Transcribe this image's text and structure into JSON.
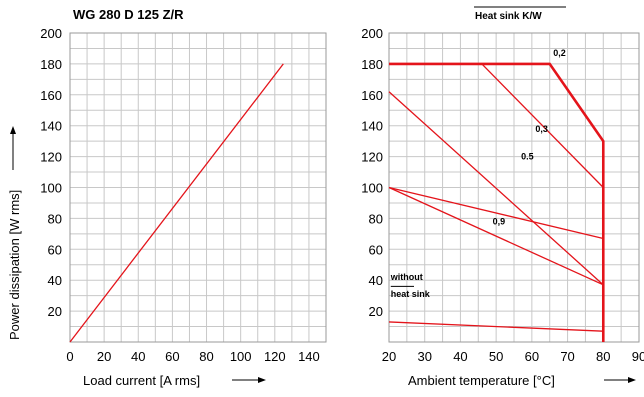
{
  "chart_data": [
    {
      "type": "line",
      "title": "WG 280 D 125 Z/R",
      "xlabel": "Load current [A rms]",
      "ylabel": "Power dissipation [W rms]",
      "xlim": [
        0,
        150
      ],
      "ylim": [
        0,
        200
      ],
      "xticks": [
        "0",
        "20",
        "40",
        "60",
        "80",
        "100",
        "120",
        "140"
      ],
      "yticks": [
        "20",
        "40",
        "60",
        "80",
        "100",
        "120",
        "140",
        "160",
        "180",
        "200"
      ],
      "grid": true,
      "color": "#e4141b",
      "series": [
        {
          "x": [
            0,
            125
          ],
          "y": [
            0,
            180
          ]
        }
      ]
    },
    {
      "type": "line",
      "header": "Heat sink K/W",
      "xlabel": "Ambient temperature [°C]",
      "xlim": [
        20,
        90
      ],
      "ylim": [
        0,
        200
      ],
      "xticks": [
        "20",
        "30",
        "40",
        "50",
        "60",
        "70",
        "80",
        "90"
      ],
      "yticks": [
        "20",
        "40",
        "60",
        "80",
        "100",
        "120",
        "140",
        "160",
        "180",
        "200"
      ],
      "grid": true,
      "color": "#e4141b",
      "series": [
        {
          "name": "0,2",
          "bold": true,
          "x": [
            20,
            65,
            80,
            80
          ],
          "y": [
            180,
            180,
            130,
            0
          ]
        },
        {
          "name": "0,3",
          "x": [
            46,
            80
          ],
          "y": [
            180,
            100
          ]
        },
        {
          "name": "0.5",
          "x": [
            20,
            80
          ],
          "y": [
            162,
            37
          ]
        },
        {
          "name": "0,9",
          "x": [
            20,
            80
          ],
          "y": [
            100,
            37
          ]
        },
        {
          "name": "without heat sink",
          "x": [
            20,
            80
          ],
          "y": [
            13,
            7
          ]
        },
        {
          "x": [
            20,
            80
          ],
          "y": [
            100,
            67
          ]
        }
      ],
      "labels": [
        {
          "text": "0,2",
          "x": 66,
          "y": 185
        },
        {
          "text": "0,3",
          "x": 61,
          "y": 136
        },
        {
          "text": "0.5",
          "x": 57,
          "y": 118
        },
        {
          "text": "0,9",
          "x": 49,
          "y": 76
        },
        {
          "text": "without",
          "x": 20.5,
          "y": 40
        },
        {
          "text": "heat sink",
          "x": 20.5,
          "y": 29
        }
      ]
    }
  ]
}
